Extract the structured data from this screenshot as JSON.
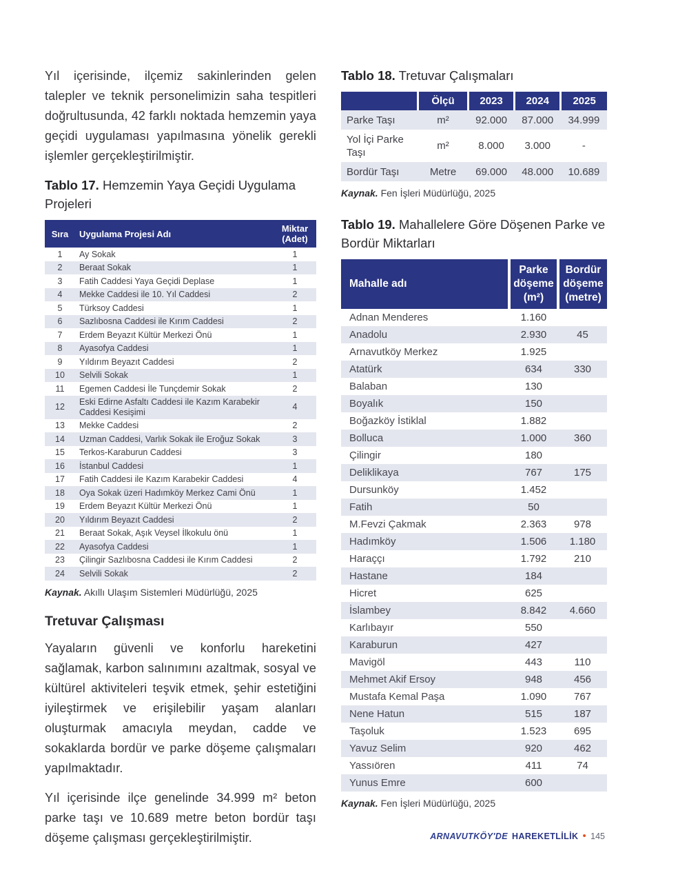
{
  "colors": {
    "table_header_navy": "#2a3583",
    "row_stripe": "#e4e6ef",
    "footer_navy": "#2e3d90",
    "footer_bullet_orange": "#e2511f"
  },
  "intro_paragraph": "Yıl içerisinde, ilçemiz sakinlerinden gelen talepler ve teknik personelimizin saha tespitleri doğrultusunda, 42 farklı noktada hemzemin yaya geçidi uygulaması yapılmasına yönelik gerekli işlemler gerçekleştirilmiştir.",
  "section_heading": "Tretuvar Çalışması",
  "section_paragraph_1": "Yayaların güvenli ve konforlu hareketini sağlamak, karbon salınımını azaltmak, sosyal ve kültürel aktiviteleri teşvik etmek, şehir estetiğini iyileştirmek ve erişilebilir yaşam alanları oluşturmak amacıyla meydan, cadde ve sokaklarda bordür ve parke döşeme çalışmaları yapılmaktadır.",
  "section_paragraph_2": "Yıl içerisinde ilçe genelinde 34.999 m² beton parke taşı ve 10.689 metre beton bordür taşı döşeme çalışması gerçekleştirilmiştir.",
  "table17": {
    "title_label": "Tablo 17.",
    "title_rest": " Hemzemin Yaya Geçidi Uygulama Projeleri",
    "columns": [
      "Sıra",
      "Uygulama Projesi Adı",
      "Miktar\n(Adet)"
    ],
    "rows": [
      [
        "1",
        "Ay Sokak",
        "1"
      ],
      [
        "2",
        "Beraat Sokak",
        "1"
      ],
      [
        "3",
        "Fatih Caddesi Yaya Geçidi Deplase",
        "1"
      ],
      [
        "4",
        "Mekke Caddesi ile 10. Yıl Caddesi",
        "2"
      ],
      [
        "5",
        "Türksoy Caddesi",
        "1"
      ],
      [
        "6",
        "Sazlıbosna Caddesi ile Kırım Caddesi",
        "2"
      ],
      [
        "7",
        "Erdem Beyazıt Kültür Merkezi Önü",
        "1"
      ],
      [
        "8",
        "Ayasofya Caddesi",
        "1"
      ],
      [
        "9",
        "Yıldırım Beyazıt Caddesi",
        "2"
      ],
      [
        "10",
        "Selvili Sokak",
        "1"
      ],
      [
        "11",
        "Egemen Caddesi İle Tunçdemir Sokak",
        "2"
      ],
      [
        "12",
        "Eski Edirne Asfaltı Caddesi ile Kazım Karabekir Caddesi Kesişimi",
        "4"
      ],
      [
        "13",
        "Mekke Caddesi",
        "2"
      ],
      [
        "14",
        "Uzman Caddesi, Varlık Sokak ile Eroğuz Sokak",
        "3"
      ],
      [
        "15",
        "Terkos-Karaburun Caddesi",
        "3"
      ],
      [
        "16",
        "İstanbul Caddesi",
        "1"
      ],
      [
        "17",
        "Fatih Caddesi ile Kazım Karabekir Caddesi",
        "4"
      ],
      [
        "18",
        "Oya Sokak üzeri Hadımköy Merkez Cami Önü",
        "1"
      ],
      [
        "19",
        "Erdem Beyazıt Kültür Merkezi Önü",
        "1"
      ],
      [
        "20",
        "Yıldırım Beyazıt Caddesi",
        "2"
      ],
      [
        "21",
        "Beraat Sokak, Aşık Veysel İlkokulu önü",
        "1"
      ],
      [
        "22",
        "Ayasofya Caddesi",
        "1"
      ],
      [
        "23",
        "Çilingir Sazlıbosna Caddesi ile Kırım Caddesi",
        "2"
      ],
      [
        "24",
        "Selvili Sokak",
        "2"
      ]
    ],
    "source_label": "Kaynak.",
    "source_text": " Akıllı Ulaşım Sistemleri Müdürlüğü, 2025"
  },
  "table18": {
    "title_label": "Tablo 18.",
    "title_rest": " Tretuvar Çalışmaları",
    "columns": [
      "",
      "Ölçü",
      "2023",
      "2024",
      "2025"
    ],
    "rows": [
      [
        "Parke Taşı",
        "m²",
        "92.000",
        "87.000",
        "34.999"
      ],
      [
        "Yol İçi Parke Taşı",
        "m²",
        "8.000",
        "3.000",
        "-"
      ],
      [
        "Bordür Taşı",
        "Metre",
        "69.000",
        "48.000",
        "10.689"
      ]
    ],
    "source_label": "Kaynak.",
    "source_text": " Fen İşleri Müdürlüğü, 2025"
  },
  "table19": {
    "title_label": "Tablo 19.",
    "title_rest": " Mahallelere Göre Döşenen Parke ve Bordür Miktarları",
    "columns": [
      "Mahalle adı",
      "Parke\ndöşeme\n(m²)",
      "Bordür\ndöşeme\n(metre)"
    ],
    "rows": [
      [
        "Adnan Menderes",
        "1.160",
        ""
      ],
      [
        "Anadolu",
        "2.930",
        "45"
      ],
      [
        "Arnavutköy Merkez",
        "1.925",
        ""
      ],
      [
        "Atatürk",
        "634",
        "330"
      ],
      [
        "Balaban",
        "130",
        ""
      ],
      [
        "Boyalık",
        "150",
        ""
      ],
      [
        "Boğazköy İstiklal",
        "1.882",
        ""
      ],
      [
        "Bolluca",
        "1.000",
        "360"
      ],
      [
        "Çilingir",
        "180",
        ""
      ],
      [
        "Deliklikaya",
        "767",
        "175"
      ],
      [
        "Dursunköy",
        "1.452",
        ""
      ],
      [
        "Fatih",
        "50",
        ""
      ],
      [
        "M.Fevzi Çakmak",
        "2.363",
        "978"
      ],
      [
        "Hadımköy",
        "1.506",
        "1.180"
      ],
      [
        "Haraççı",
        "1.792",
        "210"
      ],
      [
        "Hastane",
        "184",
        ""
      ],
      [
        "Hicret",
        "625",
        ""
      ],
      [
        "İslambey",
        "8.842",
        "4.660"
      ],
      [
        "Karlıbayır",
        "550",
        ""
      ],
      [
        "Karaburun",
        "427",
        ""
      ],
      [
        "Mavigöl",
        "443",
        "110"
      ],
      [
        "Mehmet Akif Ersoy",
        "948",
        "456"
      ],
      [
        "Mustafa Kemal Paşa",
        "1.090",
        "767"
      ],
      [
        "Nene Hatun",
        "515",
        "187"
      ],
      [
        "Taşoluk",
        "1.523",
        "695"
      ],
      [
        "Yavuz Selim",
        "920",
        "462"
      ],
      [
        "Yassıören",
        "411",
        "74"
      ],
      [
        "Yunus Emre",
        "600",
        ""
      ]
    ],
    "source_label": "Kaynak.",
    "source_text": " Fen İşleri Müdürlüğü, 2025"
  },
  "footer": {
    "brand_italic": "ARNAVUTKÖY'DE",
    "brand_bold": "HAREKETLİLİK",
    "bullet": "•",
    "page_number": "145"
  }
}
